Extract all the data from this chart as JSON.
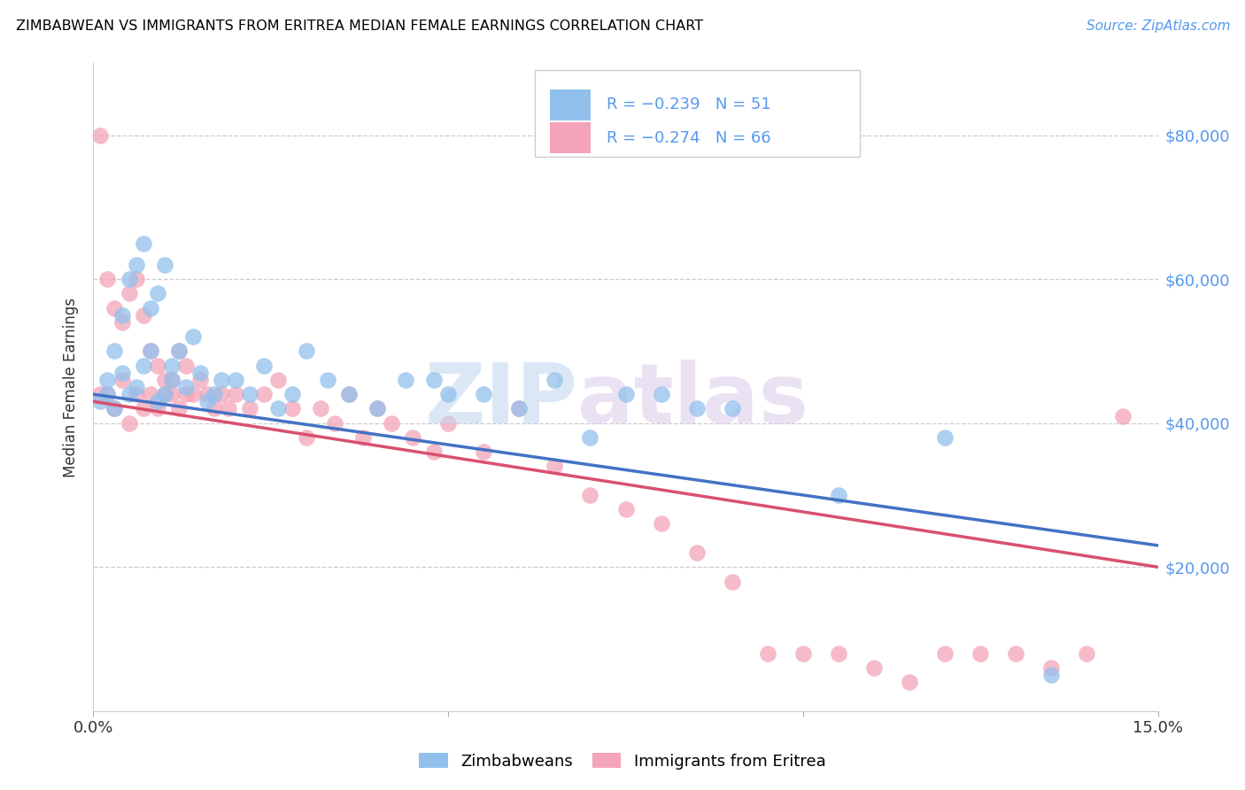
{
  "title": "ZIMBABWEAN VS IMMIGRANTS FROM ERITREA MEDIAN FEMALE EARNINGS CORRELATION CHART",
  "source": "Source: ZipAtlas.com",
  "ylabel": "Median Female Earnings",
  "legend_r_blue": "-0.239",
  "legend_n_blue": "51",
  "legend_r_pink": "-0.274",
  "legend_n_pink": "66",
  "legend_label_blue": "Zimbabweans",
  "legend_label_pink": "Immigrants from Eritrea",
  "blue_color": "#92C0EC",
  "pink_color": "#F4A4B8",
  "blue_line_color": "#4472C4",
  "pink_line_color": "#D95070",
  "xmin": 0.0,
  "xmax": 0.15,
  "ymin": 0,
  "ymax": 90000,
  "yticks": [
    20000,
    40000,
    60000,
    80000
  ],
  "ytick_labels": [
    "$20,000",
    "$40,000",
    "$60,000",
    "$80,000"
  ],
  "blue_x": [
    0.001,
    0.002,
    0.002,
    0.003,
    0.003,
    0.004,
    0.004,
    0.005,
    0.005,
    0.006,
    0.006,
    0.007,
    0.007,
    0.008,
    0.008,
    0.009,
    0.009,
    0.01,
    0.01,
    0.011,
    0.011,
    0.012,
    0.013,
    0.014,
    0.015,
    0.016,
    0.017,
    0.018,
    0.02,
    0.022,
    0.024,
    0.026,
    0.028,
    0.03,
    0.033,
    0.036,
    0.04,
    0.044,
    0.048,
    0.05,
    0.055,
    0.06,
    0.065,
    0.07,
    0.075,
    0.08,
    0.085,
    0.09,
    0.105,
    0.12,
    0.135
  ],
  "blue_y": [
    43000,
    44000,
    46000,
    42000,
    50000,
    47000,
    55000,
    44000,
    60000,
    45000,
    62000,
    48000,
    65000,
    50000,
    56000,
    43000,
    58000,
    44000,
    62000,
    46000,
    48000,
    50000,
    45000,
    52000,
    47000,
    43000,
    44000,
    46000,
    46000,
    44000,
    48000,
    42000,
    44000,
    50000,
    46000,
    44000,
    42000,
    46000,
    46000,
    44000,
    44000,
    42000,
    46000,
    38000,
    44000,
    44000,
    42000,
    42000,
    30000,
    38000,
    5000
  ],
  "pink_x": [
    0.001,
    0.001,
    0.002,
    0.002,
    0.003,
    0.003,
    0.004,
    0.004,
    0.005,
    0.005,
    0.006,
    0.006,
    0.007,
    0.007,
    0.008,
    0.008,
    0.009,
    0.009,
    0.01,
    0.01,
    0.011,
    0.011,
    0.012,
    0.012,
    0.013,
    0.013,
    0.014,
    0.015,
    0.016,
    0.017,
    0.018,
    0.019,
    0.02,
    0.022,
    0.024,
    0.026,
    0.028,
    0.03,
    0.032,
    0.034,
    0.036,
    0.038,
    0.04,
    0.042,
    0.045,
    0.048,
    0.05,
    0.055,
    0.06,
    0.065,
    0.07,
    0.075,
    0.08,
    0.085,
    0.09,
    0.095,
    0.1,
    0.105,
    0.11,
    0.115,
    0.12,
    0.125,
    0.13,
    0.135,
    0.14,
    0.145
  ],
  "pink_y": [
    80000,
    44000,
    60000,
    44000,
    56000,
    42000,
    54000,
    46000,
    58000,
    40000,
    60000,
    44000,
    55000,
    42000,
    50000,
    44000,
    48000,
    42000,
    46000,
    44000,
    44000,
    46000,
    42000,
    50000,
    44000,
    48000,
    44000,
    46000,
    44000,
    42000,
    44000,
    42000,
    44000,
    42000,
    44000,
    46000,
    42000,
    38000,
    42000,
    40000,
    44000,
    38000,
    42000,
    40000,
    38000,
    36000,
    40000,
    36000,
    42000,
    34000,
    30000,
    28000,
    26000,
    22000,
    18000,
    8000,
    8000,
    8000,
    6000,
    4000,
    8000,
    8000,
    8000,
    6000,
    8000,
    41000
  ]
}
